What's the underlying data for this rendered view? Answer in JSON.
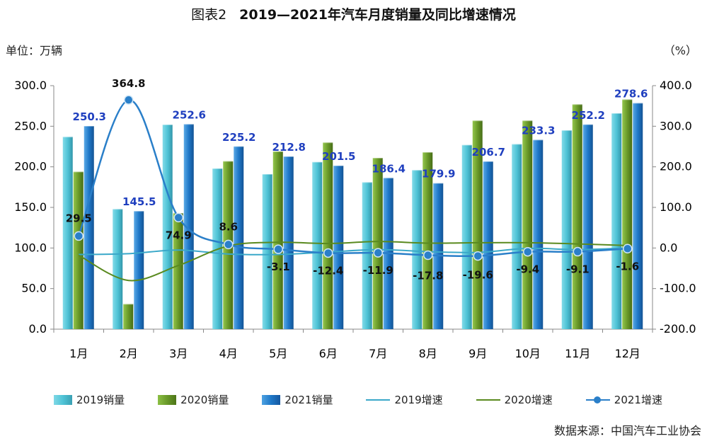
{
  "header": {
    "prefix": "图表2",
    "title": "2019—2021年汽车月度销量及同比增速情况",
    "unit_left": "单位：万辆",
    "unit_right": "（%）"
  },
  "source": "数据来源：中国汽车工业协会",
  "legend": {
    "s2019": "2019销量",
    "s2020": "2020销量",
    "s2021": "2021销量",
    "g2019": "2019增速",
    "g2020": "2020增速",
    "g2021": "2021增速"
  },
  "colors": {
    "bar2019": "#4fc3d6",
    "bar2020": "#6a9a2a",
    "bar2021": "#1f78c8",
    "line2019": "#3aa8c9",
    "line2020": "#5a8a1f",
    "line2021": "#2a7fc9",
    "label2021": "#1f3fbf"
  },
  "chart_data": {
    "type": "bar",
    "title": "2019—2021年汽车月度销量及同比增速情况",
    "categories": [
      "1月",
      "2月",
      "3月",
      "4月",
      "5月",
      "6月",
      "7月",
      "8月",
      "9月",
      "10月",
      "11月",
      "12月"
    ],
    "ylabel": "单位：万辆",
    "y2label": "（%）",
    "ylim": [
      0,
      300
    ],
    "y2lim": [
      -200,
      400
    ],
    "yticks": [
      "0.0",
      "50.0",
      "100.0",
      "150.0",
      "200.0",
      "250.0",
      "300.0"
    ],
    "y2ticks": [
      "-200.0",
      "-100.0",
      "0.0",
      "100.0",
      "200.0",
      "300.0",
      "400.0"
    ],
    "series": [
      {
        "name": "2019销量",
        "axis": "left",
        "kind": "bar",
        "values": [
          237,
          148,
          252,
          198,
          191,
          206,
          181,
          196,
          227,
          228,
          245,
          266
        ]
      },
      {
        "name": "2020销量",
        "axis": "left",
        "kind": "bar",
        "values": [
          194,
          31,
          143,
          207,
          219,
          230,
          211,
          218,
          257,
          257,
          277,
          283
        ]
      },
      {
        "name": "2021销量",
        "axis": "left",
        "kind": "bar",
        "values": [
          250.3,
          145.5,
          252.6,
          225.2,
          212.8,
          201.5,
          186.4,
          179.9,
          206.7,
          233.3,
          252.2,
          278.6
        ],
        "labels": [
          "250.3",
          "145.5",
          "252.6",
          "225.2",
          "212.8",
          "201.5",
          "186.4",
          "179.9",
          "206.7",
          "233.3",
          "252.2",
          "278.6"
        ]
      },
      {
        "name": "2019增速",
        "axis": "right",
        "kind": "line",
        "values": [
          -16,
          -14,
          -5,
          -15,
          -16,
          -10,
          -4,
          -9,
          -11,
          -1,
          -4,
          0
        ]
      },
      {
        "name": "2020增速",
        "axis": "right",
        "kind": "line",
        "values": [
          -18,
          -80,
          -43,
          5,
          14,
          11,
          16,
          12,
          13,
          13,
          10,
          6
        ]
      },
      {
        "name": "2021增速",
        "axis": "right",
        "kind": "line",
        "marker": true,
        "values": [
          29.5,
          364.8,
          74.9,
          8.6,
          -3.1,
          -12.4,
          -11.9,
          -17.8,
          -19.6,
          -9.4,
          -9.1,
          -1.6
        ],
        "labels": [
          "29.5",
          "364.8",
          "74.9",
          "8.6",
          "-3.1",
          "-12.4",
          "-11.9",
          "-17.8",
          "-19.6",
          "-9.4",
          "-9.1",
          "-1.6"
        ]
      }
    ],
    "grid": false,
    "legend_position": "bottom"
  }
}
